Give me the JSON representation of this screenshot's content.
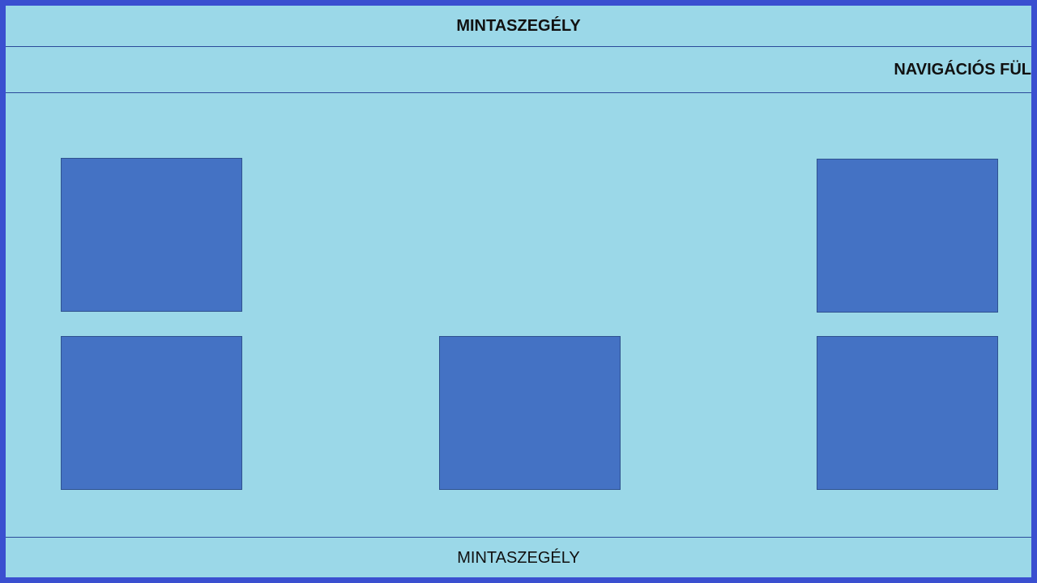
{
  "header": {
    "title": "MINTASZEGÉLY"
  },
  "nav": {
    "label": "NAVIGÁCIÓS FÜL"
  },
  "footer": {
    "title": "MINTASZEGÉLY"
  },
  "colors": {
    "frame_border": "#3a4fd0",
    "background": "#9bd8e8",
    "tile_fill": "#4472c4",
    "tile_border": "#2f528f"
  }
}
